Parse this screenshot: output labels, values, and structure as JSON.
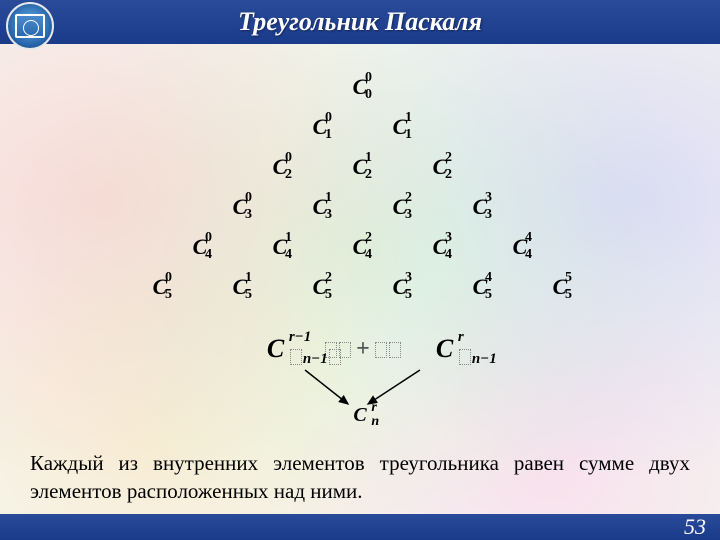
{
  "title": "Треугольник Паскаля",
  "page_number": "53",
  "triangle": {
    "type": "tree",
    "letter": "C",
    "color": "#000000",
    "font_family": "Times New Roman",
    "cell_fontsize": 22,
    "script_fontsize": 14,
    "rows": [
      [
        {
          "sub": "0",
          "sup": "0"
        }
      ],
      [
        {
          "sub": "1",
          "sup": "0"
        },
        {
          "sub": "1",
          "sup": "1"
        }
      ],
      [
        {
          "sub": "2",
          "sup": "0"
        },
        {
          "sub": "2",
          "sup": "1"
        },
        {
          "sub": "2",
          "sup": "2"
        }
      ],
      [
        {
          "sub": "3",
          "sup": "0"
        },
        {
          "sub": "3",
          "sup": "1"
        },
        {
          "sub": "3",
          "sup": "2"
        },
        {
          "sub": "3",
          "sup": "3"
        }
      ],
      [
        {
          "sub": "4",
          "sup": "0"
        },
        {
          "sub": "4",
          "sup": "1"
        },
        {
          "sub": "4",
          "sup": "2"
        },
        {
          "sub": "4",
          "sup": "3"
        },
        {
          "sub": "4",
          "sup": "4"
        }
      ],
      [
        {
          "sub": "5",
          "sup": "0"
        },
        {
          "sub": "5",
          "sup": "1"
        },
        {
          "sub": "5",
          "sup": "2"
        },
        {
          "sub": "5",
          "sup": "3"
        },
        {
          "sub": "5",
          "sup": "4"
        },
        {
          "sub": "5",
          "sup": "5"
        }
      ]
    ]
  },
  "formula": {
    "left": {
      "letter": "C",
      "sub": "n−1",
      "sup": "r−1"
    },
    "plus": "+",
    "right": {
      "letter": "C",
      "sub": "n−1",
      "sup": "r"
    },
    "result": {
      "letter": "C",
      "sub": "n",
      "sup": "r"
    },
    "arrow_color": "#000000"
  },
  "description": "Каждый из внутренних элементов треугольника равен сумме двух элементов расположенных над ними.",
  "colors": {
    "header_bg_top": "#2a4a9a",
    "header_bg_bottom": "#1a3a8a",
    "header_text": "#ffffff",
    "body_text": "#000000"
  }
}
